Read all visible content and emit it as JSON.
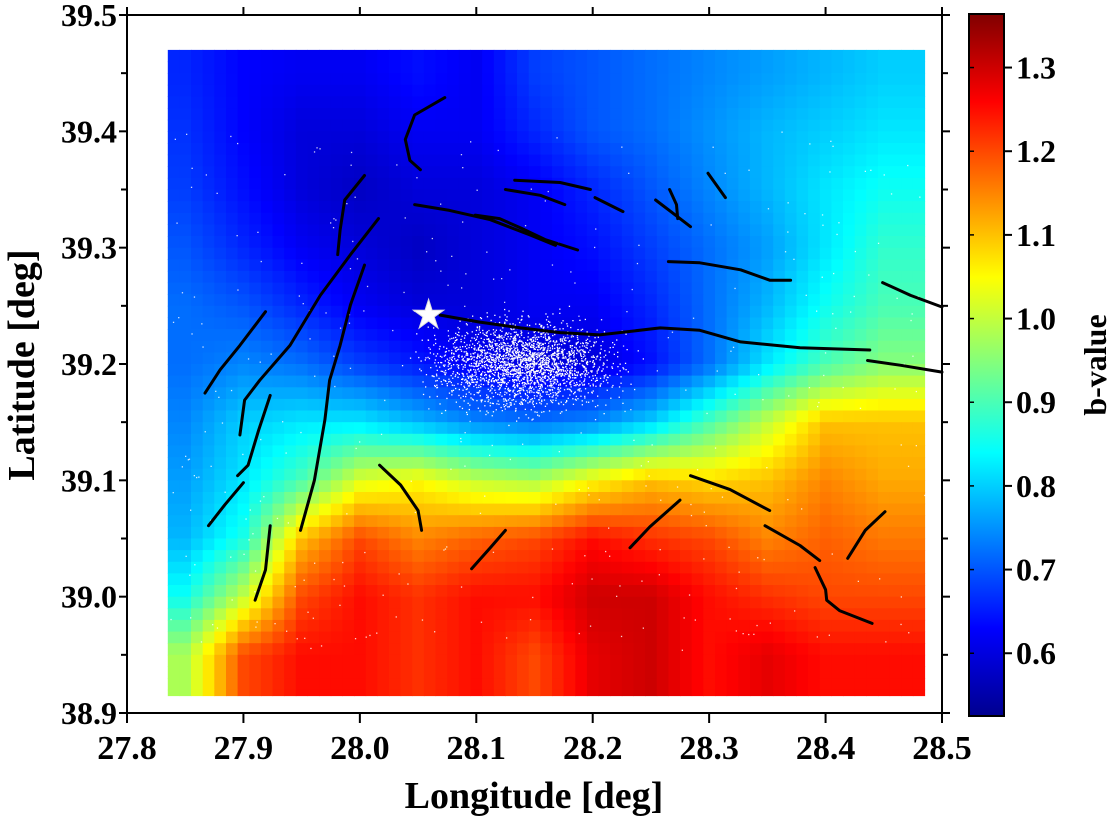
{
  "chart_data": {
    "type": "heatmap",
    "xlabel": "Longitude [deg]",
    "ylabel": "Latitude [deg]",
    "xlim": [
      27.8,
      28.5
    ],
    "ylim": [
      38.9,
      39.5
    ],
    "xticks": [
      "27.8",
      "27.9",
      "28.0",
      "28.1",
      "28.2",
      "28.3",
      "28.4",
      "28.5"
    ],
    "yticks": [
      "38.9",
      "39.0",
      "39.1",
      "39.2",
      "39.3",
      "39.4",
      "39.5"
    ],
    "data_extent": {
      "lon": [
        27.835,
        28.485
      ],
      "lat": [
        38.915,
        39.47
      ]
    },
    "grid_lon": [
      27.85,
      27.9,
      27.95,
      28.0,
      28.05,
      28.1,
      28.15,
      28.2,
      28.25,
      28.3,
      28.35,
      28.4,
      28.45
    ],
    "grid_lat": [
      39.45,
      39.4,
      39.35,
      39.3,
      39.25,
      39.2,
      39.15,
      39.1,
      39.05,
      39.0,
      38.95
    ],
    "b_values": [
      [
        0.66,
        0.63,
        0.62,
        0.62,
        0.64,
        0.62,
        0.68,
        0.7,
        0.72,
        0.74,
        0.76,
        0.78,
        0.8
      ],
      [
        0.67,
        0.63,
        0.6,
        0.6,
        0.62,
        0.62,
        0.66,
        0.7,
        0.72,
        0.75,
        0.78,
        0.8,
        0.82
      ],
      [
        0.68,
        0.64,
        0.6,
        0.58,
        0.6,
        0.6,
        0.62,
        0.66,
        0.7,
        0.74,
        0.78,
        0.82,
        0.85
      ],
      [
        0.7,
        0.66,
        0.62,
        0.6,
        0.58,
        0.6,
        0.62,
        0.64,
        0.68,
        0.72,
        0.76,
        0.82,
        0.88
      ],
      [
        0.72,
        0.7,
        0.66,
        0.62,
        0.6,
        0.6,
        0.62,
        0.62,
        0.66,
        0.72,
        0.78,
        0.85,
        0.9
      ],
      [
        0.72,
        0.74,
        0.72,
        0.68,
        0.65,
        0.62,
        0.6,
        0.6,
        0.64,
        0.72,
        0.82,
        0.9,
        0.95
      ],
      [
        0.74,
        0.8,
        0.82,
        0.82,
        0.78,
        0.74,
        0.72,
        0.74,
        0.8,
        0.9,
        1.0,
        1.1,
        1.1
      ],
      [
        0.76,
        0.82,
        0.9,
        1.02,
        1.05,
        1.0,
        0.98,
        1.05,
        1.1,
        1.08,
        1.1,
        1.15,
        1.12
      ],
      [
        0.78,
        0.86,
        1.1,
        1.2,
        1.15,
        1.18,
        1.2,
        1.25,
        1.22,
        1.2,
        1.15,
        1.18,
        1.16
      ],
      [
        0.85,
        1.0,
        1.2,
        1.25,
        1.22,
        1.25,
        1.25,
        1.3,
        1.3,
        1.25,
        1.22,
        1.2,
        1.2
      ],
      [
        0.98,
        1.2,
        1.25,
        1.25,
        1.22,
        1.25,
        1.2,
        1.28,
        1.3,
        1.25,
        1.28,
        1.25,
        1.25
      ]
    ],
    "colormap": "jet",
    "colorbar": {
      "label": "b-value",
      "range": [
        0.525,
        1.364
      ],
      "ticks": [
        "0.6",
        "0.7",
        "0.8",
        "0.9",
        "1.0",
        "1.1",
        "1.2",
        "1.3"
      ]
    },
    "epicenter": {
      "lon": 28.059,
      "lat": 39.242,
      "marker": "white-star"
    },
    "seismicity": {
      "color": "#ffffff",
      "marker": "dot"
    },
    "faults_color": "#000000",
    "faults": [
      [
        [
          28.073,
          39.429
        ],
        [
          28.047,
          39.414
        ],
        [
          28.039,
          39.393
        ],
        [
          28.043,
          39.375
        ],
        [
          28.052,
          39.367
        ]
      ],
      [
        [
          28.004,
          39.362
        ],
        [
          27.987,
          39.341
        ],
        [
          27.983,
          39.315
        ],
        [
          27.981,
          39.294
        ]
      ],
      [
        [
          28.016,
          39.325
        ],
        [
          27.992,
          39.294
        ],
        [
          27.966,
          39.259
        ],
        [
          27.94,
          39.216
        ],
        [
          27.914,
          39.186
        ],
        [
          27.901,
          39.169
        ],
        [
          27.897,
          39.139
        ]
      ],
      [
        [
          28.004,
          39.285
        ],
        [
          27.992,
          39.251
        ],
        [
          27.983,
          39.216
        ],
        [
          27.974,
          39.186
        ],
        [
          27.97,
          39.152
        ],
        [
          27.961,
          39.1
        ],
        [
          27.949,
          39.057
        ]
      ],
      [
        [
          27.919,
          39.245
        ],
        [
          27.897,
          39.216
        ],
        [
          27.88,
          39.195
        ],
        [
          27.867,
          39.175
        ]
      ],
      [
        [
          27.923,
          39.173
        ],
        [
          27.913,
          39.143
        ],
        [
          27.904,
          39.113
        ],
        [
          27.895,
          39.104
        ]
      ],
      [
        [
          27.9,
          39.098
        ],
        [
          27.884,
          39.079
        ],
        [
          27.87,
          39.061
        ]
      ],
      [
        [
          27.923,
          39.061
        ],
        [
          27.919,
          39.023
        ],
        [
          27.91,
          38.997
        ]
      ],
      [
        [
          28.017,
          39.113
        ],
        [
          28.035,
          39.096
        ],
        [
          28.05,
          39.074
        ],
        [
          28.053,
          39.057
        ]
      ],
      [
        [
          28.047,
          39.337
        ],
        [
          28.077,
          39.332
        ],
        [
          28.112,
          39.324
        ],
        [
          28.146,
          39.311
        ],
        [
          28.168,
          39.302
        ]
      ],
      [
        [
          28.099,
          39.328
        ],
        [
          28.12,
          39.325
        ],
        [
          28.138,
          39.317
        ],
        [
          28.159,
          39.307
        ],
        [
          28.187,
          39.298
        ]
      ],
      [
        [
          28.125,
          39.35
        ],
        [
          28.155,
          39.345
        ],
        [
          28.176,
          39.337
        ]
      ],
      [
        [
          28.133,
          39.358
        ],
        [
          28.172,
          39.356
        ],
        [
          28.198,
          39.35
        ]
      ],
      [
        [
          28.202,
          39.343
        ],
        [
          28.226,
          39.331
        ]
      ],
      [
        [
          28.254,
          39.341
        ],
        [
          28.271,
          39.328
        ],
        [
          28.284,
          39.318
        ]
      ],
      [
        [
          28.266,
          39.35
        ],
        [
          28.272,
          39.337
        ],
        [
          28.273,
          39.325
        ]
      ],
      [
        [
          28.299,
          39.364
        ],
        [
          28.314,
          39.343
        ]
      ],
      [
        [
          28.265,
          39.288
        ],
        [
          28.292,
          39.287
        ],
        [
          28.327,
          39.281
        ],
        [
          28.352,
          39.272
        ],
        [
          28.37,
          39.272
        ]
      ],
      [
        [
          28.069,
          39.242
        ],
        [
          28.103,
          39.236
        ],
        [
          28.138,
          39.231
        ],
        [
          28.172,
          39.227
        ],
        [
          28.206,
          39.225
        ],
        [
          28.258,
          39.231
        ],
        [
          28.292,
          39.229
        ],
        [
          28.327,
          39.219
        ],
        [
          28.378,
          39.214
        ],
        [
          28.438,
          39.212
        ]
      ],
      [
        [
          28.436,
          39.203
        ],
        [
          28.464,
          39.199
        ],
        [
          28.5,
          39.193
        ]
      ],
      [
        [
          28.449,
          39.27
        ],
        [
          28.473,
          39.259
        ],
        [
          28.5,
          39.249
        ]
      ],
      [
        [
          28.284,
          39.104
        ],
        [
          28.318,
          39.092
        ],
        [
          28.352,
          39.074
        ]
      ],
      [
        [
          28.232,
          39.042
        ],
        [
          28.249,
          39.06
        ],
        [
          28.275,
          39.083
        ]
      ],
      [
        [
          28.096,
          39.024
        ],
        [
          28.112,
          39.042
        ],
        [
          28.125,
          39.057
        ]
      ],
      [
        [
          28.348,
          39.061
        ],
        [
          28.378,
          39.044
        ],
        [
          28.395,
          39.031
        ]
      ],
      [
        [
          28.391,
          39.025
        ],
        [
          28.4,
          39.006
        ],
        [
          28.401,
          38.997
        ],
        [
          28.412,
          38.988
        ],
        [
          28.44,
          38.977
        ]
      ],
      [
        [
          28.419,
          39.033
        ],
        [
          28.434,
          39.057
        ],
        [
          28.451,
          39.073
        ]
      ]
    ]
  }
}
